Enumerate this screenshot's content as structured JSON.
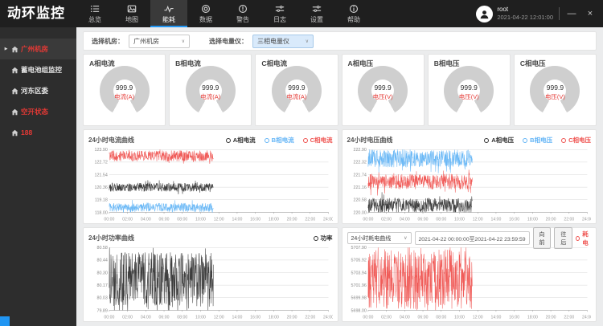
{
  "app": {
    "title": "动环监控"
  },
  "topnav": {
    "items": [
      {
        "label": "总览",
        "icon": "list-icon",
        "active": false
      },
      {
        "label": "地图",
        "icon": "image-icon",
        "active": false
      },
      {
        "label": "能耗",
        "icon": "pulse-icon",
        "active": true
      },
      {
        "label": "数据",
        "icon": "target-icon",
        "active": false
      },
      {
        "label": "警告",
        "icon": "alert-circle-icon",
        "active": false
      },
      {
        "label": "日志",
        "icon": "sliders-icon",
        "active": false
      },
      {
        "label": "设置",
        "icon": "sliders-icon",
        "active": false
      },
      {
        "label": "帮助",
        "icon": "help-circle-icon",
        "active": false
      }
    ]
  },
  "user": {
    "name": "root",
    "datetime": "2021-04-22 12:01:00"
  },
  "window_controls": {
    "minimize": "—",
    "close": "×"
  },
  "sidebar": {
    "items": [
      {
        "label": "广州机房",
        "selected": true,
        "alert": true
      },
      {
        "label": "蓄电池组监控",
        "selected": false,
        "alert": false
      },
      {
        "label": "河东区委",
        "selected": false,
        "alert": false
      },
      {
        "label": "空开状态",
        "selected": false,
        "alert": true
      },
      {
        "label": "188",
        "selected": false,
        "alert": true
      }
    ]
  },
  "filters": {
    "room_label": "选择机房：",
    "room_value": "广州机房",
    "meter_label": "选择电量仪：",
    "meter_value": "三相电量仪"
  },
  "gauges": [
    {
      "title": "A相电流",
      "value": "999.9",
      "unit": "电流(A)"
    },
    {
      "title": "B相电流",
      "value": "999.9",
      "unit": "电流(A)"
    },
    {
      "title": "C相电流",
      "value": "999.9",
      "unit": "电流(A)"
    },
    {
      "title": "A相电压",
      "value": "999.9",
      "unit": "电压(V)"
    },
    {
      "title": "B相电压",
      "value": "999.9",
      "unit": "电压(V)"
    },
    {
      "title": "C相电压",
      "value": "999.9",
      "unit": "电压(V)"
    }
  ],
  "consumption_controls": {
    "curve_select": "24小时耗电曲线",
    "range": "2021-04-22 00:00:00至2021-04-22 23:59:59",
    "prev_label": "向前",
    "next_label": "往后"
  },
  "colors": {
    "accent_blue": "#2196f3",
    "alert_red": "#e53935",
    "series_black": "#333333",
    "series_blue": "#64b5f6",
    "series_red": "#ef5350",
    "gauge_gray": "#cfcfcf"
  },
  "chart_data": [
    {
      "type": "line",
      "title": "24小时电流曲线",
      "x_ticks": [
        "00:00",
        "02:00",
        "04:00",
        "06:00",
        "08:00",
        "10:00",
        "12:00",
        "14:00",
        "16:00",
        "18:00",
        "20:00",
        "22:00",
        "24:00"
      ],
      "y_ticks": [
        "123.90",
        "122.72",
        "121.54",
        "120.36",
        "119.18",
        "118.00"
      ],
      "ylim": [
        118.0,
        123.9
      ],
      "data_end_hour": 11.4,
      "grid": true,
      "legend_position": "top-right",
      "series": [
        {
          "name": "A相电流",
          "color": "#333333",
          "center": 120.35,
          "amplitude": 0.4
        },
        {
          "name": "B相电流",
          "color": "#64b5f6",
          "center": 118.45,
          "amplitude": 0.42
        },
        {
          "name": "C相电流",
          "color": "#ef5350",
          "center": 123.3,
          "amplitude": 0.52
        }
      ]
    },
    {
      "type": "line",
      "title": "24小时电压曲线",
      "x_ticks": [
        "00:00",
        "02:00",
        "04:00",
        "06:00",
        "08:00",
        "10:00",
        "12:00",
        "14:00",
        "16:00",
        "18:00",
        "20:00",
        "22:00",
        "24:00"
      ],
      "y_ticks": [
        "222.90",
        "222.32",
        "221.74",
        "221.16",
        "220.58",
        "220.00"
      ],
      "ylim": [
        220.0,
        222.9
      ],
      "data_end_hour": 11.4,
      "grid": true,
      "legend_position": "top-right",
      "series": [
        {
          "name": "A相电压",
          "color": "#333333",
          "center": 220.32,
          "amplitude": 0.34
        },
        {
          "name": "B相电压",
          "color": "#64b5f6",
          "center": 222.48,
          "amplitude": 0.4
        },
        {
          "name": "C相电压",
          "color": "#ef5350",
          "center": 221.42,
          "amplitude": 0.36
        }
      ]
    },
    {
      "type": "line",
      "title": "24小时功率曲线",
      "x_ticks": [
        "00:00",
        "02:00",
        "04:00",
        "06:00",
        "08:00",
        "10:00",
        "12:00",
        "14:00",
        "16:00",
        "18:00",
        "20:00",
        "22:00",
        "24:00"
      ],
      "y_ticks": [
        "80.58",
        "80.44",
        "80.30",
        "80.17",
        "80.03",
        "79.89"
      ],
      "ylim": [
        79.89,
        80.58
      ],
      "data_end_hour": 11.4,
      "grid": true,
      "legend_position": "top-right",
      "series": [
        {
          "name": "功率",
          "color": "#333333",
          "center": 80.23,
          "amplitude": 0.3
        }
      ]
    },
    {
      "type": "line",
      "title": "24小时耗电曲线",
      "x_ticks": [
        "00:00",
        "02:00",
        "04:00",
        "06:00",
        "08:00",
        "10:00",
        "12:00",
        "14:00",
        "16:00",
        "18:00",
        "20:00",
        "22:00",
        "24:00"
      ],
      "y_ticks": [
        "5707.90",
        "5705.92",
        "5703.94",
        "5701.96",
        "5699.98",
        "5698.00"
      ],
      "ylim": [
        5698.0,
        5707.9
      ],
      "data_end_hour": 11.4,
      "grid": true,
      "legend_position": "top-right",
      "series": [
        {
          "name": "耗电",
          "color": "#ef5350",
          "center": 5702.9,
          "amplitude": 4.7
        }
      ]
    }
  ]
}
